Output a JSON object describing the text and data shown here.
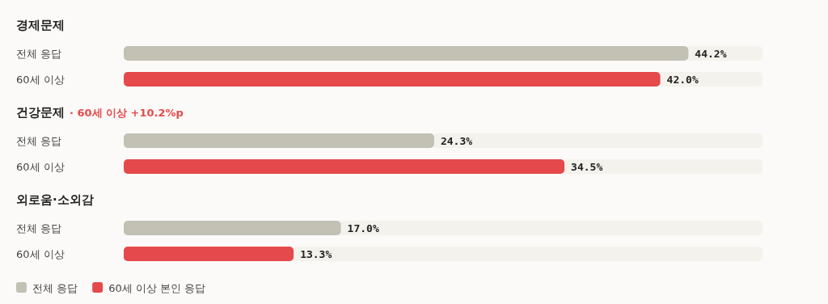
{
  "chart_data": [
    {
      "type": "bar",
      "orientation": "horizontal",
      "title": "경제문제",
      "categories": [
        "전체 응답",
        "60세 이상"
      ],
      "xlim": [
        0,
        50
      ],
      "tick_labels": "y",
      "series": [
        {
          "color": "#c2c1b4",
          "values": [
            44.2,
            null
          ],
          "value_labels": [
            "44.2%",
            null
          ]
        },
        {
          "color": "#e5494b",
          "values": [
            null,
            42.0
          ],
          "value_labels": [
            null,
            "42.0%"
          ]
        }
      ]
    },
    {
      "type": "bar",
      "orientation": "horizontal",
      "title": "건강문제",
      "subtitle": "· 60세 이상 +10.2%p",
      "categories": [
        "전체 응답",
        "60세 이상"
      ],
      "xlim": [
        0,
        50
      ],
      "tick_labels": "y",
      "series": [
        {
          "color": "#c2c1b4",
          "values": [
            24.3,
            null
          ],
          "value_labels": [
            "24.3%",
            null
          ]
        },
        {
          "color": "#e5494b",
          "values": [
            null,
            34.5
          ],
          "value_labels": [
            null,
            "34.5%"
          ]
        }
      ]
    },
    {
      "type": "bar",
      "orientation": "horizontal",
      "title": "외로움·소외감",
      "categories": [
        "전체 응답",
        "60세 이상"
      ],
      "xlim": [
        0,
        50
      ],
      "tick_labels": "y",
      "legend": "bottom",
      "series": [
        {
          "name": "전체 응답",
          "color": "#c2c1b4",
          "values": [
            17.0,
            null
          ],
          "value_labels": [
            "17.0%",
            null
          ]
        },
        {
          "name": "60세 이상 본인 응답",
          "color": "#e5494b",
          "values": [
            null,
            13.3
          ],
          "value_labels": [
            null,
            "13.3%"
          ]
        }
      ]
    }
  ]
}
